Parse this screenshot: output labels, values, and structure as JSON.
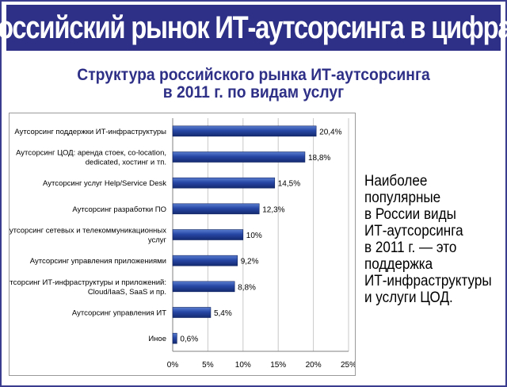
{
  "page": {
    "banner_title": "Российский рынок ИТ-аутсорсинга в цифрах",
    "subtitle_lines": [
      "Структура российского рынка ИТ-аутсорсинга",
      "в 2011 г. по видам услуг"
    ],
    "side_text_lines": [
      "Наиболее",
      "популярные",
      "в России виды",
      "ИТ-аутсорсинга",
      "в 2011 г. — это",
      "поддержка",
      "ИТ-инфраструктуры",
      "и услуги ЦОД."
    ],
    "colors": {
      "banner": "#2e2f86",
      "title_text": "#2e2f86",
      "bar": "#1f3a8f",
      "bar_light": "#5b7fd0"
    }
  },
  "chart_data": {
    "type": "bar",
    "orientation": "horizontal",
    "categories": [
      [
        "Аутсорсинг поддержки ИТ-инфраструктуры"
      ],
      [
        "Аутсорсинг ЦОД: аренда стоек, co-location,",
        "dedicated, хостинг и тп."
      ],
      [
        "Аутсорсинг услуг Help/Service Desk"
      ],
      [
        "Аутсорсинг разработки ПО"
      ],
      [
        "Аутсорсинг сетевых и телекоммуникационных",
        "услуг"
      ],
      [
        "Аутсорсинг управления приложениями"
      ],
      [
        "Аутсорсинг ИТ-инфраструктуры и приложений:",
        "Cloud/IaaS, SaaS и пр."
      ],
      [
        "Аутсорсинг управления ИТ"
      ],
      [
        "Иное"
      ]
    ],
    "values": [
      20.4,
      18.8,
      14.5,
      12.3,
      10,
      9.2,
      8.8,
      5.4,
      0.6
    ],
    "data_labels": [
      "20,4%",
      "18,8%",
      "14,5%",
      "12,3%",
      "10%",
      "9,2%",
      "8,8%",
      "5,4%",
      "0,6%"
    ],
    "x_ticks": [
      0,
      5,
      10,
      15,
      20,
      25
    ],
    "x_tick_labels": [
      "0%",
      "5%",
      "10%",
      "15%",
      "20%",
      "25%"
    ],
    "xlim": [
      0,
      25
    ],
    "grid": "vertical"
  }
}
